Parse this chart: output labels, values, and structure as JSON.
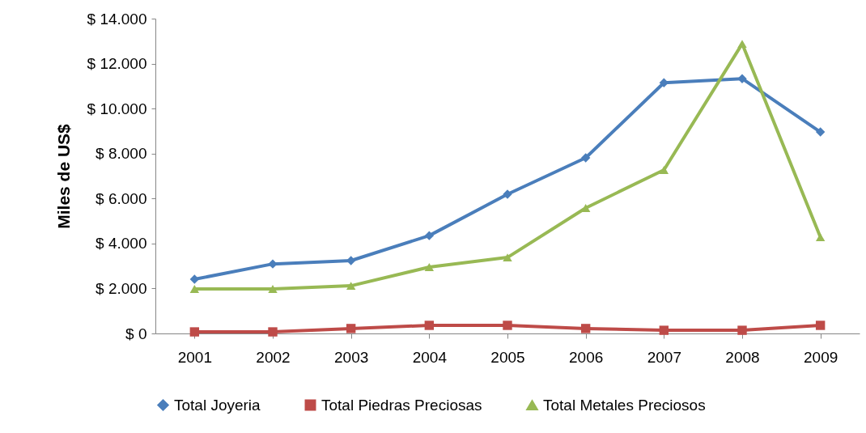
{
  "chart_data": {
    "type": "line",
    "ylabel": "Miles de US$",
    "categories": [
      "2001",
      "2002",
      "2003",
      "2004",
      "2005",
      "2006",
      "2007",
      "2008",
      "2009"
    ],
    "ylim": [
      0,
      14000
    ],
    "yticks": [
      {
        "value": 0,
        "label": "$ 0"
      },
      {
        "value": 2000,
        "label": "$ 2.000"
      },
      {
        "value": 4000,
        "label": "$ 4.000"
      },
      {
        "value": 6000,
        "label": "$ 6.000"
      },
      {
        "value": 8000,
        "label": "$ 8.000"
      },
      {
        "value": 10000,
        "label": "$ 10.000"
      },
      {
        "value": 12000,
        "label": "$ 12.000"
      },
      {
        "value": 14000,
        "label": "$ 14.000"
      }
    ],
    "grid": false,
    "legend": "bottom",
    "line_style": "solid",
    "series": [
      {
        "name": "Total Joyeria",
        "color": "#4a7ebb",
        "marker": "diamond",
        "values": [
          2410,
          3090,
          3240,
          4350,
          6190,
          7810,
          11150,
          11330,
          8960
        ]
      },
      {
        "name": "Total Piedras Preciosas",
        "color": "#be4b48",
        "marker": "square",
        "values": [
          70,
          70,
          220,
          360,
          360,
          220,
          140,
          140,
          360
        ]
      },
      {
        "name": "Total Metales Preciosos",
        "color": "#98b954",
        "marker": "triangle",
        "values": [
          1980,
          1980,
          2120,
          2950,
          3380,
          5580,
          7270,
          12880,
          4280
        ]
      }
    ]
  }
}
